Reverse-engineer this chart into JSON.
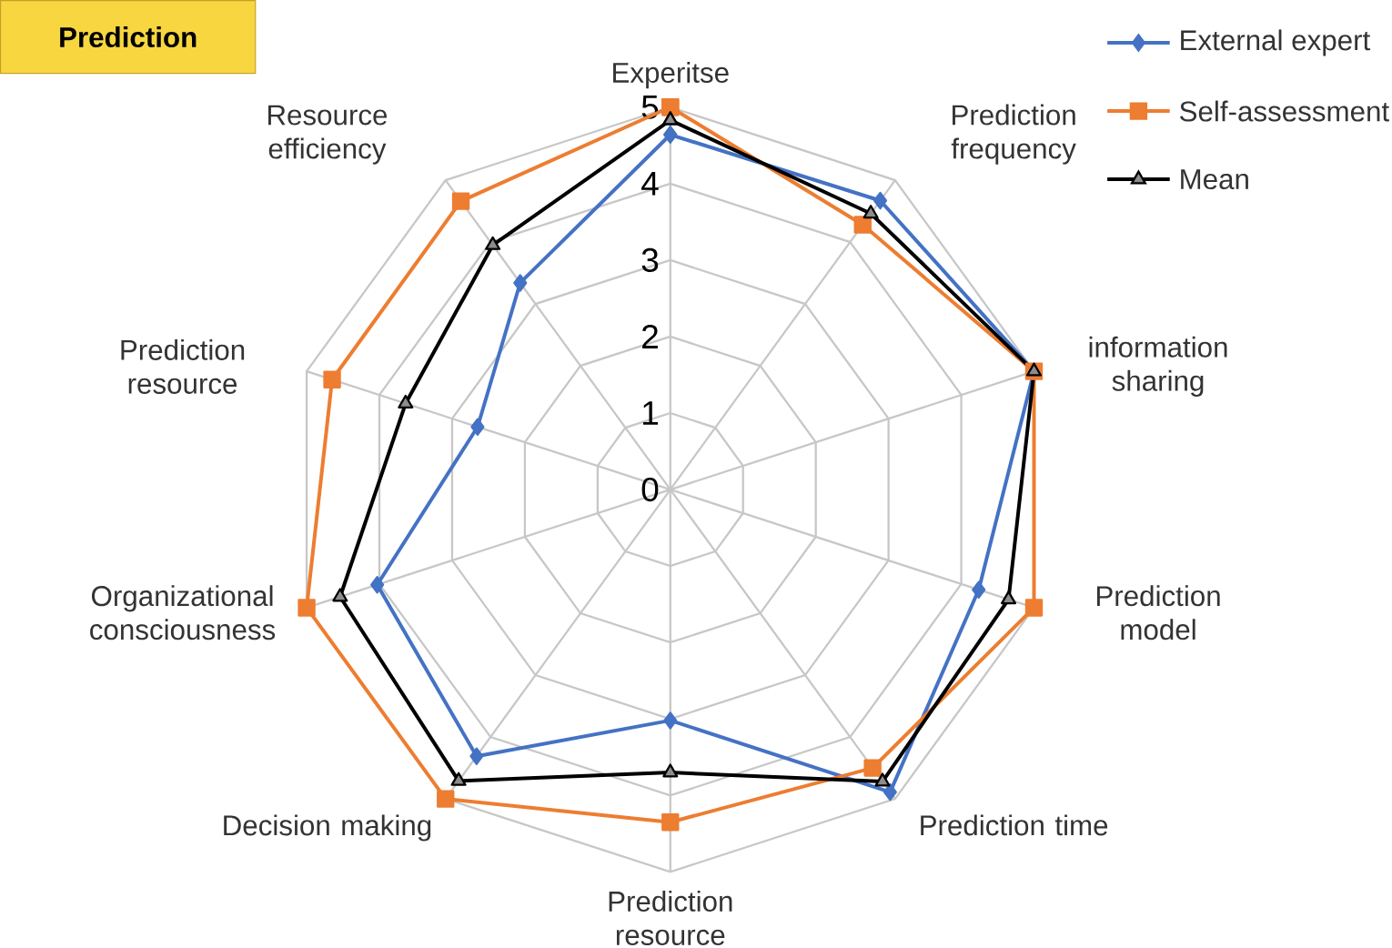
{
  "chart_data": {
    "type": "radar",
    "title": "Prediction",
    "categories": [
      "Experitse",
      "Prediction frequency",
      "information sharing",
      "Prediction model",
      "Prediction time",
      "Prediction resource",
      "Decision making",
      "Organizational consciousness",
      "Prediction resource",
      "Resource efficiency"
    ],
    "series": [
      {
        "name": "External expert",
        "color": "#4472c4",
        "marker": "diamond",
        "values": [
          4.64,
          4.67,
          5.0,
          4.24,
          4.89,
          3.02,
          4.31,
          4.03,
          2.65,
          3.34
        ]
      },
      {
        "name": "Self-assessment",
        "color": "#ed7d31",
        "marker": "square",
        "values": [
          5.0,
          4.28,
          5.0,
          5.0,
          4.5,
          4.35,
          5.0,
          5.0,
          4.65,
          4.66
        ]
      },
      {
        "name": "Mean",
        "color": "#000000",
        "marker": "triangle",
        "values": [
          4.83,
          4.46,
          5.0,
          4.65,
          4.72,
          3.7,
          4.71,
          4.54,
          3.64,
          3.95
        ]
      }
    ],
    "ylim": [
      0,
      5
    ],
    "yticks": [
      0,
      1,
      2,
      3,
      4,
      5
    ],
    "grid": true,
    "legend": "top right"
  }
}
